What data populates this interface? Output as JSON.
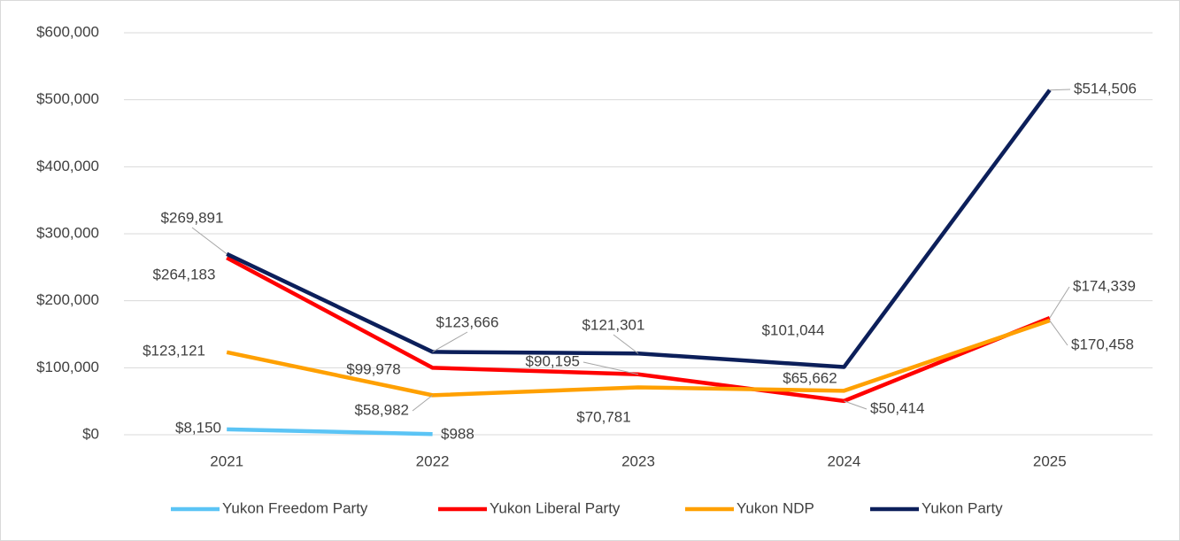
{
  "chart_data": {
    "type": "line",
    "categories": [
      "2021",
      "2022",
      "2023",
      "2024",
      "2025"
    ],
    "ylim": [
      0,
      600000
    ],
    "yticks": [
      {
        "value": 0,
        "label": "$0"
      },
      {
        "value": 100000,
        "label": "$100,000"
      },
      {
        "value": 200000,
        "label": "$200,000"
      },
      {
        "value": 300000,
        "label": "$300,000"
      },
      {
        "value": 400000,
        "label": "$400,000"
      },
      {
        "value": 500000,
        "label": "$500,000"
      },
      {
        "value": 600000,
        "label": "$600,000"
      }
    ],
    "grid": true,
    "legend": "bottom",
    "series": [
      {
        "name": "Yukon Freedom Party",
        "color": "#5bc4f5",
        "values": [
          8150,
          988,
          null,
          null,
          null
        ],
        "value_labels": [
          "$8,150",
          "$988",
          null,
          null,
          null
        ]
      },
      {
        "name": "Yukon Liberal Party",
        "color": "#ff0000",
        "values": [
          264183,
          99978,
          90195,
          50414,
          174339
        ],
        "value_labels": [
          "$264,183",
          "$99,978",
          "$90,195",
          "$50,414",
          "$174,339"
        ]
      },
      {
        "name": "Yukon NDP",
        "color": "#ffa000",
        "values": [
          123121,
          58982,
          70781,
          65662,
          170458
        ],
        "value_labels": [
          "$123,121",
          "$58,982",
          "$70,781",
          "$65,662",
          "$170,458"
        ]
      },
      {
        "name": "Yukon Party",
        "color": "#0c1f5a",
        "values": [
          269891,
          123666,
          121301,
          101044,
          514506
        ],
        "value_labels": [
          "$269,891",
          "$123,666",
          "$121,301",
          "$101,044",
          "$514,506"
        ]
      }
    ]
  }
}
